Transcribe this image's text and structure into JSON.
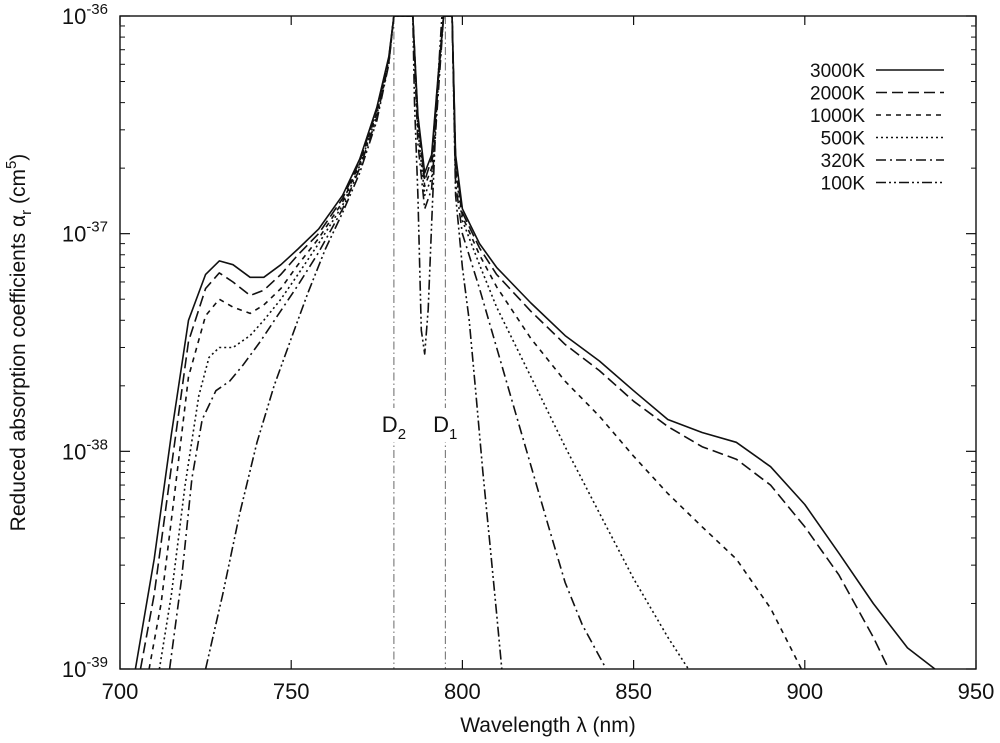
{
  "chart_data": {
    "type": "line",
    "title": "",
    "xlabel": "Wavelength λ (nm)",
    "ylabel": "Reduced absorption coefficients α_r (cm^5)",
    "ylabel_parts": {
      "main": "Reduced absorption coefficients α",
      "sub": "r",
      "unit_open": " (cm",
      "unit_sup": "5",
      "unit_close": ")"
    },
    "xlim": [
      700,
      950
    ],
    "ylim": [
      1e-39,
      1e-36
    ],
    "yscale": "log",
    "xticks": [
      700,
      750,
      800,
      850,
      900,
      950
    ],
    "xtick_labels": [
      "700",
      "750",
      "800",
      "850",
      "900",
      "950"
    ],
    "yticks": [
      1e-39,
      1e-38,
      1e-37,
      1e-36
    ],
    "ytick_labels": [
      {
        "base": "10",
        "exp": "-39"
      },
      {
        "base": "10",
        "exp": "-38"
      },
      {
        "base": "10",
        "exp": "-37"
      },
      {
        "base": "10",
        "exp": "-36"
      }
    ],
    "grid": false,
    "legend_position": "top-right",
    "annotations": [
      {
        "x": 780,
        "base": "D",
        "sub": "2"
      },
      {
        "x": 795,
        "base": "D",
        "sub": "1"
      }
    ],
    "series": [
      {
        "name": "3000K",
        "dash": "solid",
        "points": [
          [
            704.5,
            1e-39
          ],
          [
            710,
            3.2e-39
          ],
          [
            715,
            1.2e-38
          ],
          [
            720,
            4e-38
          ],
          [
            725,
            6.5e-38
          ],
          [
            729,
            7.5e-38
          ],
          [
            733,
            7.2e-38
          ],
          [
            738,
            6.3e-38
          ],
          [
            742,
            6.3e-38
          ],
          [
            747,
            7.2e-38
          ],
          [
            752,
            8.5e-38
          ],
          [
            758,
            1.05e-37
          ],
          [
            765,
            1.5e-37
          ],
          [
            770,
            2.2e-37
          ],
          [
            775,
            3.8e-37
          ],
          [
            778.5,
            6.5e-37
          ],
          [
            780,
            1e-36
          ],
          [
            785.5,
            1e-36
          ],
          [
            787,
            3.5e-37
          ],
          [
            789,
            1.9e-37
          ],
          [
            791,
            2.3e-37
          ],
          [
            793,
            5.5e-37
          ],
          [
            794.5,
            1e-36
          ],
          [
            797,
            1e-36
          ],
          [
            798,
            2.3e-37
          ],
          [
            800,
            1.3e-37
          ],
          [
            805,
            9e-38
          ],
          [
            810,
            7e-38
          ],
          [
            820,
            4.8e-38
          ],
          [
            830,
            3.4e-38
          ],
          [
            840,
            2.6e-38
          ],
          [
            850,
            1.9e-38
          ],
          [
            860,
            1.4e-38
          ],
          [
            870,
            1.22e-38
          ],
          [
            880,
            1.1e-38
          ],
          [
            890,
            8.5e-39
          ],
          [
            900,
            5.7e-39
          ],
          [
            910,
            3.4e-39
          ],
          [
            920,
            2e-39
          ],
          [
            930,
            1.25e-39
          ],
          [
            938,
            1e-39
          ]
        ]
      },
      {
        "name": "2000K",
        "dash": "11,5",
        "points": [
          [
            706,
            1e-39
          ],
          [
            710,
            2.2e-39
          ],
          [
            715,
            8.5e-39
          ],
          [
            720,
            3.2e-38
          ],
          [
            725,
            5.6e-38
          ],
          [
            729,
            6.6e-38
          ],
          [
            733,
            6e-38
          ],
          [
            738,
            5.2e-38
          ],
          [
            742,
            5.5e-38
          ],
          [
            747,
            6.5e-38
          ],
          [
            752,
            8e-38
          ],
          [
            758,
            1e-37
          ],
          [
            765,
            1.45e-37
          ],
          [
            770,
            2.15e-37
          ],
          [
            775,
            3.7e-37
          ],
          [
            778.5,
            6.4e-37
          ],
          [
            780,
            1e-36
          ],
          [
            785.5,
            1e-36
          ],
          [
            787,
            3.4e-37
          ],
          [
            789,
            1.75e-37
          ],
          [
            791,
            2.2e-37
          ],
          [
            793,
            5.4e-37
          ],
          [
            794.5,
            1e-36
          ],
          [
            797,
            1e-36
          ],
          [
            798,
            2.2e-37
          ],
          [
            800,
            1.25e-37
          ],
          [
            805,
            8.6e-38
          ],
          [
            810,
            6.5e-38
          ],
          [
            820,
            4.4e-38
          ],
          [
            830,
            3.1e-38
          ],
          [
            840,
            2.35e-38
          ],
          [
            850,
            1.7e-38
          ],
          [
            860,
            1.3e-38
          ],
          [
            870,
            1.05e-38
          ],
          [
            880,
            9.2e-39
          ],
          [
            890,
            7e-39
          ],
          [
            900,
            4.5e-39
          ],
          [
            910,
            2.7e-39
          ],
          [
            920,
            1.4e-39
          ],
          [
            924.5,
            1e-39
          ]
        ]
      },
      {
        "name": "1000K",
        "dash": "5,5",
        "points": [
          [
            708.5,
            1e-39
          ],
          [
            712,
            2e-39
          ],
          [
            716,
            6.5e-39
          ],
          [
            720,
            2.2e-38
          ],
          [
            725,
            4.2e-38
          ],
          [
            729,
            5e-38
          ],
          [
            733,
            4.6e-38
          ],
          [
            738,
            4.3e-38
          ],
          [
            742,
            4.7e-38
          ],
          [
            747,
            5.6e-38
          ],
          [
            752,
            7.2e-38
          ],
          [
            758,
            9.5e-38
          ],
          [
            765,
            1.4e-37
          ],
          [
            770,
            2.1e-37
          ],
          [
            775,
            3.6e-37
          ],
          [
            778.5,
            6.3e-37
          ],
          [
            780,
            1e-36
          ],
          [
            785.5,
            1e-36
          ],
          [
            787,
            3.2e-37
          ],
          [
            789,
            1.65e-37
          ],
          [
            791,
            2e-37
          ],
          [
            793,
            5.2e-37
          ],
          [
            794.5,
            1e-36
          ],
          [
            797,
            1e-36
          ],
          [
            798,
            2e-37
          ],
          [
            800,
            1.2e-37
          ],
          [
            805,
            8e-38
          ],
          [
            810,
            5.7e-38
          ],
          [
            820,
            3.3e-38
          ],
          [
            830,
            2.1e-38
          ],
          [
            840,
            1.45e-38
          ],
          [
            850,
            9.5e-39
          ],
          [
            860,
            6.4e-39
          ],
          [
            870,
            4.5e-39
          ],
          [
            880,
            3.2e-39
          ],
          [
            890,
            1.9e-39
          ],
          [
            899,
            1e-39
          ]
        ]
      },
      {
        "name": "500K",
        "dash": "2,3",
        "points": [
          [
            711.5,
            1e-39
          ],
          [
            715,
            2.2e-39
          ],
          [
            719,
            7e-39
          ],
          [
            723,
            1.8e-38
          ],
          [
            726,
            2.7e-38
          ],
          [
            729,
            3e-38
          ],
          [
            733,
            3e-38
          ],
          [
            738,
            3.4e-38
          ],
          [
            742,
            4e-38
          ],
          [
            747,
            5e-38
          ],
          [
            752,
            6.5e-38
          ],
          [
            758,
            9e-38
          ],
          [
            765,
            1.35e-37
          ],
          [
            770,
            2.05e-37
          ],
          [
            775,
            3.5e-37
          ],
          [
            778.5,
            6.2e-37
          ],
          [
            780,
            1e-36
          ],
          [
            785.5,
            1e-36
          ],
          [
            787,
            3e-37
          ],
          [
            789,
            1.5e-37
          ],
          [
            791,
            1.8e-37
          ],
          [
            793,
            4.9e-37
          ],
          [
            794.5,
            1e-36
          ],
          [
            797,
            1e-36
          ],
          [
            798,
            1.9e-37
          ],
          [
            800,
            1.15e-37
          ],
          [
            805,
            7.2e-38
          ],
          [
            810,
            4.6e-38
          ],
          [
            820,
            2.2e-38
          ],
          [
            830,
            1.05e-38
          ],
          [
            840,
            5.2e-39
          ],
          [
            850,
            2.6e-39
          ],
          [
            860,
            1.4e-39
          ],
          [
            866,
            1e-39
          ]
        ]
      },
      {
        "name": "320K",
        "dash": "10,4,2,4",
        "points": [
          [
            714.5,
            1e-39
          ],
          [
            718,
            2.6e-39
          ],
          [
            721,
            7.5e-39
          ],
          [
            724,
            1.4e-38
          ],
          [
            728,
            1.9e-38
          ],
          [
            732,
            2.1e-38
          ],
          [
            736,
            2.5e-38
          ],
          [
            741,
            3.2e-38
          ],
          [
            746,
            4.2e-38
          ],
          [
            752,
            5.8e-38
          ],
          [
            758,
            8.2e-38
          ],
          [
            765,
            1.3e-37
          ],
          [
            770,
            2e-37
          ],
          [
            775,
            3.4e-37
          ],
          [
            778.5,
            6.1e-37
          ],
          [
            780,
            1e-36
          ],
          [
            785.5,
            1e-36
          ],
          [
            787,
            2.6e-37
          ],
          [
            789,
            1.3e-37
          ],
          [
            791,
            1.6e-37
          ],
          [
            793,
            4.5e-37
          ],
          [
            794.5,
            1e-36
          ],
          [
            797,
            1e-36
          ],
          [
            798,
            1.7e-37
          ],
          [
            800,
            1e-37
          ],
          [
            805,
            5.6e-38
          ],
          [
            810,
            3e-38
          ],
          [
            815,
            1.6e-38
          ],
          [
            820,
            8.6e-39
          ],
          [
            825,
            4.6e-39
          ],
          [
            830,
            2.5e-39
          ],
          [
            835,
            1.6e-39
          ],
          [
            842,
            1e-39
          ]
        ]
      },
      {
        "name": "100K",
        "dash": "10,3,2,3,2,3",
        "points": [
          [
            725,
            1e-39
          ],
          [
            730,
            2.2e-39
          ],
          [
            735,
            5.2e-39
          ],
          [
            740,
            1.1e-38
          ],
          [
            745,
            2e-38
          ],
          [
            750,
            3.3e-38
          ],
          [
            755,
            5.4e-38
          ],
          [
            760,
            8.5e-38
          ],
          [
            765,
            1.25e-37
          ],
          [
            770,
            1.9e-37
          ],
          [
            775,
            3.3e-37
          ],
          [
            778.5,
            6e-37
          ],
          [
            780,
            1e-36
          ],
          [
            785.5,
            1e-36
          ],
          [
            786,
            4e-37
          ],
          [
            787,
            1.5e-37
          ],
          [
            788,
            3.6e-38
          ],
          [
            789,
            2.8e-38
          ],
          [
            790,
            4.5e-38
          ],
          [
            791,
            1.1e-37
          ],
          [
            792,
            2.6e-37
          ],
          [
            793,
            5.5e-37
          ],
          [
            794,
            1e-36
          ],
          [
            797,
            1e-36
          ],
          [
            798,
            1.5e-37
          ],
          [
            800,
            7e-38
          ],
          [
            802,
            4e-38
          ],
          [
            804,
            1.8e-38
          ],
          [
            806,
            8e-39
          ],
          [
            808,
            3.8e-39
          ],
          [
            810,
            1.8e-39
          ],
          [
            811.5,
            1e-39
          ]
        ]
      }
    ]
  }
}
